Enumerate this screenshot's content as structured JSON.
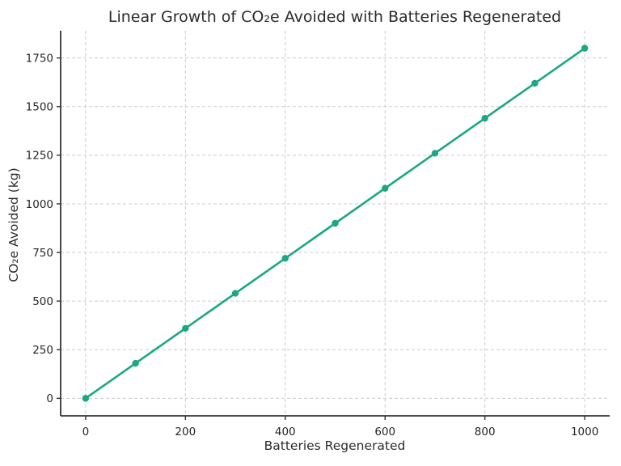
{
  "chart_data": {
    "type": "line",
    "title": "Linear Growth of CO₂e Avoided with Batteries Regenerated",
    "xlabel": "Batteries Regenerated",
    "ylabel": "CO₂e Avoided (kg)",
    "x": [
      0,
      100,
      200,
      300,
      400,
      500,
      600,
      700,
      800,
      900,
      1000
    ],
    "y": [
      0,
      180,
      360,
      540,
      720,
      900,
      1080,
      1260,
      1440,
      1620,
      1800
    ],
    "xticks": [
      0,
      200,
      400,
      600,
      800,
      1000
    ],
    "yticks": [
      0,
      250,
      500,
      750,
      1000,
      1250,
      1500,
      1750
    ],
    "xlim": [
      -50,
      1050
    ],
    "ylim": [
      -90,
      1890
    ],
    "grid": "dashed",
    "legend": "none",
    "marker": "circle",
    "line_color": "#1ba784",
    "grid_color": "#cccccc",
    "spine_color": "#333333",
    "text_color": "#262626",
    "background": "#ffffff"
  }
}
